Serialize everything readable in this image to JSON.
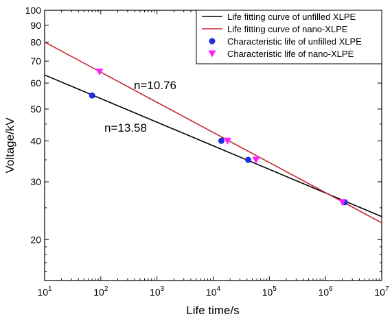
{
  "chart_data": {
    "type": "scatter",
    "xlabel": "Life time/s",
    "ylabel": "Voltage/kV",
    "xscale": "log",
    "yscale": "log",
    "xlim": [
      10,
      10000000
    ],
    "ylim": [
      15,
      100
    ],
    "x_ticks": [
      {
        "value": 10,
        "base": "10",
        "exp": "1"
      },
      {
        "value": 100,
        "base": "10",
        "exp": "2"
      },
      {
        "value": 1000,
        "base": "10",
        "exp": "3"
      },
      {
        "value": 10000,
        "base": "10",
        "exp": "4"
      },
      {
        "value": 100000,
        "base": "10",
        "exp": "5"
      },
      {
        "value": 1000000,
        "base": "10",
        "exp": "6"
      },
      {
        "value": 10000000,
        "base": "10",
        "exp": "7"
      }
    ],
    "y_ticks": [
      {
        "value": 20,
        "label": "20"
      },
      {
        "value": 30,
        "label": "30"
      },
      {
        "value": 40,
        "label": "40"
      },
      {
        "value": 50,
        "label": "50"
      },
      {
        "value": 60,
        "label": "60"
      },
      {
        "value": 70,
        "label": "70"
      },
      {
        "value": 80,
        "label": "80"
      },
      {
        "value": 90,
        "label": "90"
      },
      {
        "value": 100,
        "label": "100"
      }
    ],
    "grid": false,
    "legend_position": "top-right",
    "series": [
      {
        "name": "Life fitting curve of unfilled XLPE",
        "kind": "line",
        "color": "#000000",
        "x": [
          10,
          10000000
        ],
        "y": [
          63.5,
          23.5
        ]
      },
      {
        "name": "Life fitting curve of nano-XLPE",
        "kind": "line",
        "color": "#c0282d",
        "x": [
          10,
          10000000
        ],
        "y": [
          80,
          22.5
        ]
      },
      {
        "name": "Characteristic life of unfilled XLPE",
        "kind": "scatter",
        "marker": "circle",
        "color": "#1f2fe0",
        "x": [
          70,
          14000,
          42000,
          2200000
        ],
        "y": [
          55,
          40,
          35,
          26
        ]
      },
      {
        "name": "Characteristic life of nano-XLPE",
        "kind": "scatter",
        "marker": "triangle-down",
        "color": "#ff1eff",
        "x": [
          95,
          18000,
          58000,
          2000000
        ],
        "y": [
          65,
          40,
          35,
          26
        ]
      }
    ],
    "annotations": [
      {
        "text": "n=10.76",
        "x": 3000,
        "y": 58
      },
      {
        "text": "n=13.58",
        "x": 800,
        "y": 45
      }
    ]
  }
}
